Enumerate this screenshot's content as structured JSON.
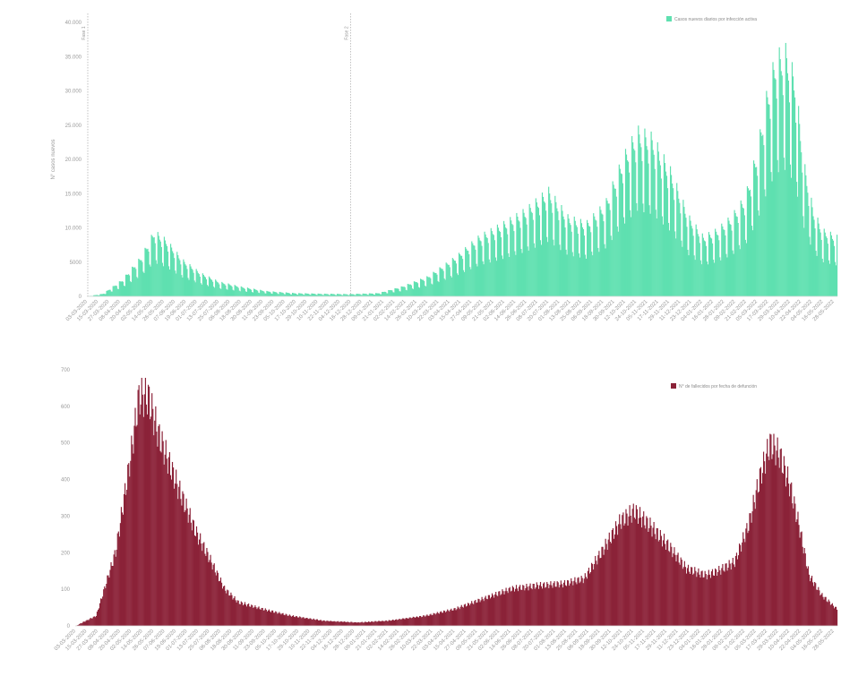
{
  "chart_data": [
    {
      "type": "bar",
      "legend": {
        "label": "Casos nuevos diarios por infección activa",
        "color": "#5fe0b0",
        "position": "top-right"
      },
      "ylabel": "N° casos nuevos",
      "ylim": [
        0,
        40000
      ],
      "yticks": [
        0,
        5000,
        10000,
        15000,
        20000,
        25000,
        30000,
        35000,
        40000
      ],
      "ytick_labels": [
        "0",
        "5000",
        "10.000",
        "15.000",
        "20.000",
        "25.000",
        "30.000",
        "35.000",
        "40.000"
      ],
      "grid": false,
      "color": "#5fe0b0",
      "x_start": "2020-03-03",
      "x_end": "2022-05-31",
      "xtick_labels": [
        "03-03-2020",
        "15-03-2020",
        "27-03-2020",
        "08-04-2020",
        "20-04-2020",
        "02-05-2020",
        "14-05-2020",
        "26-05-2020",
        "07-06-2020",
        "19-06-2020",
        "01-07-2020",
        "13-07-2020",
        "25-07-2020",
        "06-08-2020",
        "18-08-2020",
        "30-08-2020",
        "11-09-2020",
        "23-09-2020",
        "05-10-2020",
        "17-10-2020",
        "29-10-2020",
        "10-11-2020",
        "22-11-2020",
        "04-12-2020",
        "16-12-2020",
        "28-12-2020",
        "09-01-2021",
        "21-01-2021",
        "02-02-2021",
        "14-02-2021",
        "26-02-2021",
        "10-03-2021",
        "22-03-2021",
        "03-04-2021",
        "15-04-2021",
        "27-04-2021",
        "09-05-2021",
        "21-05-2021",
        "02-06-2021",
        "14-06-2021",
        "26-06-2021",
        "08-07-2021",
        "20-07-2021",
        "01-08-2021",
        "13-08-2021",
        "25-08-2021",
        "06-09-2021",
        "18-09-2021",
        "30-09-2021",
        "12-10-2021",
        "24-10-2021",
        "05-11-2021",
        "17-11-2021",
        "29-11-2021",
        "11-12-2021",
        "23-12-2021",
        "04-01-2022",
        "16-01-2022",
        "28-01-2022",
        "09-02-2022",
        "21-02-2022",
        "05-03-2022",
        "17-03-2022",
        "29-03-2022",
        "10-04-2022",
        "22-04-2022",
        "04-05-2022",
        "16-05-2022",
        "28-05-2022"
      ],
      "markers": [
        {
          "date": "2020-03-03",
          "label": "Fase 1"
        },
        {
          "date": "2020-12-15",
          "label": "Fase 2"
        }
      ],
      "weekly_peaks": [
        [
          "2020-03-03",
          0
        ],
        [
          "2020-03-20",
          400
        ],
        [
          "2020-04-10",
          2500
        ],
        [
          "2020-05-01",
          6000
        ],
        [
          "2020-05-15",
          9800
        ],
        [
          "2020-05-28",
          8500
        ],
        [
          "2020-06-15",
          5500
        ],
        [
          "2020-07-05",
          3500
        ],
        [
          "2020-07-25",
          2200
        ],
        [
          "2020-08-20",
          1400
        ],
        [
          "2020-09-15",
          800
        ],
        [
          "2020-10-15",
          500
        ],
        [
          "2020-11-15",
          400
        ],
        [
          "2020-12-15",
          350
        ],
        [
          "2021-01-15",
          500
        ],
        [
          "2021-02-10",
          1500
        ],
        [
          "2021-03-10",
          3000
        ],
        [
          "2021-04-10",
          6000
        ],
        [
          "2021-05-05",
          9000
        ],
        [
          "2021-06-01",
          11000
        ],
        [
          "2021-06-25",
          13000
        ],
        [
          "2021-07-20",
          16000
        ],
        [
          "2021-08-10",
          12000
        ],
        [
          "2021-08-30",
          11000
        ],
        [
          "2021-09-20",
          14000
        ],
        [
          "2021-10-10",
          21000
        ],
        [
          "2021-10-25",
          25000
        ],
        [
          "2021-11-10",
          24000
        ],
        [
          "2021-11-30",
          19000
        ],
        [
          "2021-12-20",
          12000
        ],
        [
          "2022-01-05",
          9000
        ],
        [
          "2022-01-20",
          10000
        ],
        [
          "2022-02-05",
          12000
        ],
        [
          "2022-02-20",
          15000
        ],
        [
          "2022-03-05",
          22000
        ],
        [
          "2022-03-15",
          30000
        ],
        [
          "2022-03-25",
          36000
        ],
        [
          "2022-04-05",
          37000
        ],
        [
          "2022-04-15",
          33000
        ],
        [
          "2022-04-25",
          20000
        ],
        [
          "2022-05-05",
          13000
        ],
        [
          "2022-05-15",
          10000
        ],
        [
          "2022-05-31",
          9000
        ]
      ]
    },
    {
      "type": "bar",
      "legend": {
        "label": "N° de fallecidos por fecha de defunción",
        "color": "#8b2238",
        "position": "top-right"
      },
      "ylim": [
        0,
        700
      ],
      "yticks": [
        0,
        100,
        200,
        300,
        400,
        500,
        600,
        700
      ],
      "ytick_labels": [
        "0",
        "100",
        "200",
        "300",
        "400",
        "500",
        "600",
        "700"
      ],
      "grid": false,
      "color": "#8b2238",
      "x_start": "2020-03-03",
      "x_end": "2022-05-31",
      "xtick_labels": [
        "03-03-2020",
        "15-03-2020",
        "27-03-2020",
        "08-04-2020",
        "20-04-2020",
        "02-05-2020",
        "14-05-2020",
        "26-05-2020",
        "07-06-2020",
        "19-06-2020",
        "01-07-2020",
        "13-07-2020",
        "25-07-2020",
        "06-08-2020",
        "18-08-2020",
        "30-08-2020",
        "11-09-2020",
        "23-09-2020",
        "05-10-2020",
        "17-10-2020",
        "29-10-2020",
        "10-11-2020",
        "22-11-2020",
        "04-12-2020",
        "16-12-2020",
        "28-12-2020",
        "09-01-2021",
        "21-01-2021",
        "02-02-2021",
        "14-02-2021",
        "26-02-2021",
        "10-03-2021",
        "22-03-2021",
        "03-04-2021",
        "15-04-2021",
        "27-04-2021",
        "09-05-2021",
        "21-05-2021",
        "02-06-2021",
        "14-06-2021",
        "26-06-2021",
        "08-07-2021",
        "20-07-2021",
        "01-08-2021",
        "13-08-2021",
        "25-08-2021",
        "06-09-2021",
        "18-09-2021",
        "30-09-2021",
        "12-10-2021",
        "24-10-2021",
        "05-11-2021",
        "17-11-2021",
        "29-11-2021",
        "11-12-2021",
        "23-12-2021",
        "04-01-2022",
        "16-01-2022",
        "28-01-2022",
        "09-02-2022",
        "21-02-2022",
        "05-03-2022",
        "17-03-2022",
        "29-03-2022",
        "10-04-2022",
        "22-04-2022",
        "04-05-2022",
        "16-05-2022",
        "28-05-2022"
      ],
      "daily_trend": [
        [
          "2020-03-03",
          0
        ],
        [
          "2020-03-25",
          30
        ],
        [
          "2020-04-15",
          220
        ],
        [
          "2020-05-01",
          500
        ],
        [
          "2020-05-10",
          680
        ],
        [
          "2020-05-20",
          680
        ],
        [
          "2020-06-01",
          560
        ],
        [
          "2020-06-20",
          420
        ],
        [
          "2020-07-10",
          280
        ],
        [
          "2020-07-25",
          200
        ],
        [
          "2020-08-10",
          110
        ],
        [
          "2020-08-25",
          70
        ],
        [
          "2020-09-20",
          50
        ],
        [
          "2020-10-20",
          30
        ],
        [
          "2020-11-25",
          15
        ],
        [
          "2021-01-01",
          10
        ],
        [
          "2021-02-01",
          15
        ],
        [
          "2021-03-15",
          30
        ],
        [
          "2021-04-15",
          50
        ],
        [
          "2021-05-15",
          80
        ],
        [
          "2021-06-15",
          110
        ],
        [
          "2021-07-15",
          120
        ],
        [
          "2021-08-10",
          125
        ],
        [
          "2021-09-01",
          140
        ],
        [
          "2021-09-20",
          220
        ],
        [
          "2021-10-10",
          310
        ],
        [
          "2021-10-25",
          340
        ],
        [
          "2021-11-10",
          300
        ],
        [
          "2021-11-30",
          240
        ],
        [
          "2021-12-20",
          170
        ],
        [
          "2022-01-10",
          150
        ],
        [
          "2022-01-25",
          165
        ],
        [
          "2022-02-10",
          190
        ],
        [
          "2022-02-25",
          300
        ],
        [
          "2022-03-10",
          450
        ],
        [
          "2022-03-20",
          540
        ],
        [
          "2022-03-30",
          510
        ],
        [
          "2022-04-10",
          420
        ],
        [
          "2022-04-20",
          300
        ],
        [
          "2022-05-01",
          150
        ],
        [
          "2022-05-15",
          90
        ],
        [
          "2022-05-31",
          50
        ]
      ]
    }
  ]
}
